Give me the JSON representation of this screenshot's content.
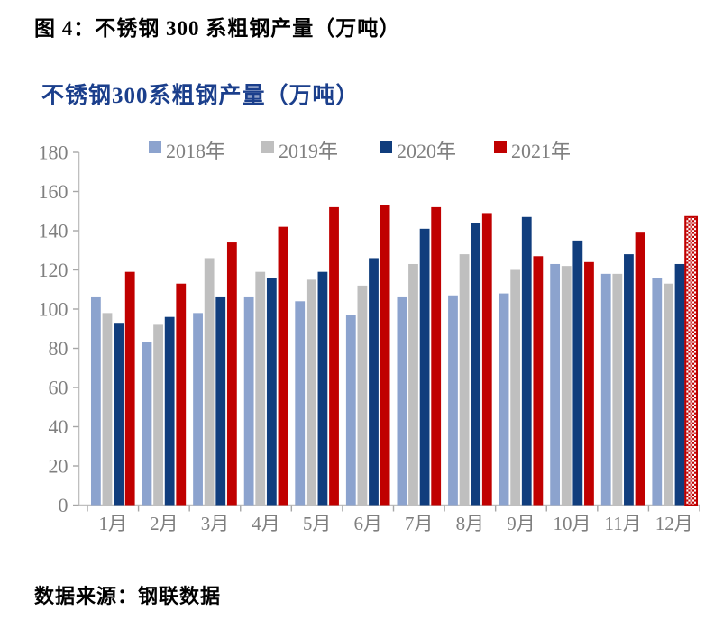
{
  "figure_caption": "图 4：不锈钢 300 系粗钢产量（万吨）",
  "source_note": "数据来源：钢联数据",
  "chart_data": {
    "type": "bar",
    "title": "不锈钢300系粗钢产量（万吨）",
    "title_color": "#1B3F8C",
    "xlabel": "",
    "ylabel": "",
    "ylim": [
      0,
      180
    ],
    "y_step": 20,
    "gridlines": false,
    "legend_position": "top",
    "axis_color": "#BFBFBF",
    "tick_color": "#A6A6A6",
    "label_color": "#7F7F7F",
    "categories": [
      "1月",
      "2月",
      "3月",
      "4月",
      "5月",
      "6月",
      "7月",
      "8月",
      "9月",
      "10月",
      "11月",
      "12月"
    ],
    "series": [
      {
        "name": "2018年",
        "color": "#8CA3CE",
        "values": [
          106,
          83,
          98,
          106,
          104,
          97,
          106,
          107,
          108,
          123,
          118,
          116
        ]
      },
      {
        "name": "2019年",
        "color": "#BFBFBF",
        "values": [
          98,
          92,
          126,
          119,
          115,
          112,
          123,
          128,
          120,
          122,
          118,
          113
        ]
      },
      {
        "name": "2020年",
        "color": "#103D7D",
        "values": [
          93,
          96,
          106,
          116,
          119,
          126,
          141,
          144,
          147,
          135,
          128,
          123
        ]
      },
      {
        "name": "2021年",
        "color": "#C00000",
        "values": [
          119,
          113,
          134,
          142,
          152,
          153,
          152,
          149,
          127,
          124,
          139,
          147
        ]
      }
    ],
    "forecast_marker": {
      "series": "2021年",
      "category": "12月",
      "style": "red-white-checkerboard-outline"
    }
  }
}
